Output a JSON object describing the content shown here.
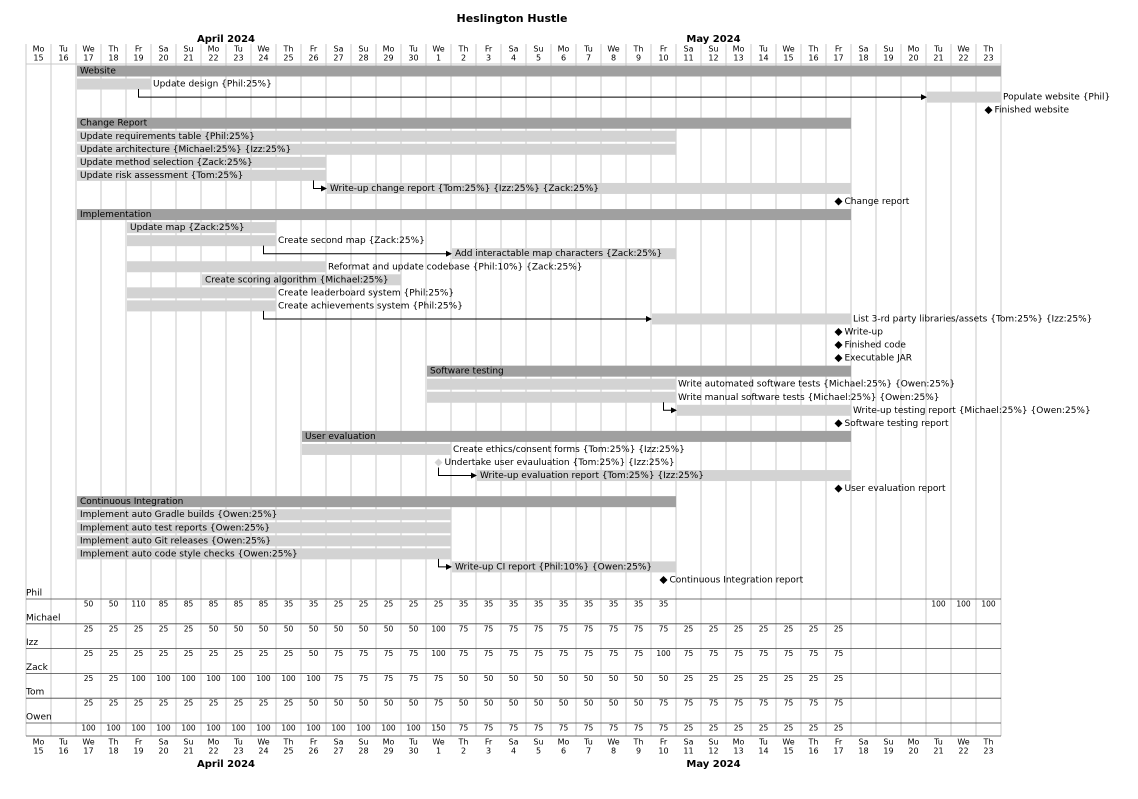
{
  "chart_data": {
    "type": "gantt",
    "title": "Heslington Hustle",
    "xlim": [
      "2024-04-15",
      "2024-05-23"
    ],
    "months": [
      "April 2024",
      "May 2024"
    ],
    "weekdays": [
      "Mo",
      "Tu",
      "We",
      "Th",
      "Fr",
      "Sa",
      "Su",
      "Mo",
      "Tu",
      "We",
      "Th",
      "Fr",
      "Sa",
      "Su",
      "Mo",
      "Tu",
      "We",
      "Th",
      "Fr",
      "Sa",
      "Su",
      "Mo",
      "Tu",
      "We",
      "Th",
      "Fr",
      "Sa",
      "Su",
      "Mo",
      "Tu",
      "We",
      "Th",
      "Fr",
      "Sa",
      "Su",
      "Mo",
      "Tu",
      "We",
      "Th"
    ],
    "days": [
      15,
      16,
      17,
      18,
      19,
      20,
      21,
      22,
      23,
      24,
      25,
      26,
      27,
      28,
      29,
      30,
      1,
      2,
      3,
      4,
      5,
      6,
      7,
      8,
      9,
      10,
      11,
      12,
      13,
      14,
      15,
      16,
      17,
      18,
      19,
      20,
      21,
      22,
      23
    ],
    "group_color": "#a0a0a0",
    "task_color": "#d3d3d3",
    "milestone_color": "#000000",
    "overload_color": "#cc0000",
    "tasks": [
      {
        "kind": "group",
        "name": "Website",
        "start": "2024-04-17",
        "end": "2024-05-23"
      },
      {
        "kind": "task",
        "name": "Update design {Phil:25%}",
        "start": "2024-04-17",
        "end": "2024-04-19"
      },
      {
        "kind": "task",
        "name": "Populate website {Phil}",
        "start": "2024-05-21",
        "end": "2024-05-23"
      },
      {
        "kind": "milestone",
        "name": "Finished website",
        "start": "2024-05-23"
      },
      {
        "kind": "group",
        "name": "Change Report",
        "start": "2024-04-17",
        "end": "2024-05-17"
      },
      {
        "kind": "task",
        "name": "Update requirements table {Phil:25%}",
        "start": "2024-04-17",
        "end": "2024-05-10"
      },
      {
        "kind": "task",
        "name": "Update architecture {Michael:25%} {Izz:25%}",
        "start": "2024-04-17",
        "end": "2024-05-10"
      },
      {
        "kind": "task",
        "name": "Update method selection {Zack:25%}",
        "start": "2024-04-17",
        "end": "2024-04-26"
      },
      {
        "kind": "task",
        "name": "Update risk assessment {Tom:25%}",
        "start": "2024-04-17",
        "end": "2024-04-26"
      },
      {
        "kind": "task",
        "name": "Write-up change report {Tom:25%} {Izz:25%} {Zack:25%}",
        "start": "2024-04-27",
        "end": "2024-05-17"
      },
      {
        "kind": "milestone",
        "name": "Change report",
        "start": "2024-05-17"
      },
      {
        "kind": "group",
        "name": "Implementation",
        "start": "2024-04-17",
        "end": "2024-05-17"
      },
      {
        "kind": "task",
        "name": "Update map {Zack:25%}",
        "start": "2024-04-19",
        "end": "2024-04-24"
      },
      {
        "kind": "task",
        "name": "Create second map {Zack:25%}",
        "start": "2024-04-19",
        "end": "2024-04-24"
      },
      {
        "kind": "task",
        "name": "Add interactable map characters {Zack:25%}",
        "start": "2024-05-02",
        "end": "2024-05-10"
      },
      {
        "kind": "task",
        "name": "Reformat and update codebase {Phil:10%} {Zack:25%}",
        "start": "2024-04-19",
        "end": "2024-04-26"
      },
      {
        "kind": "task",
        "name": "Create scoring algorithm {Michael:25%}",
        "start": "2024-04-22",
        "end": "2024-04-29"
      },
      {
        "kind": "task",
        "name": "Create leaderboard system {Phil:25%}",
        "start": "2024-04-19",
        "end": "2024-04-24"
      },
      {
        "kind": "task",
        "name": "Create achievements system {Phil:25%}",
        "start": "2024-04-19",
        "end": "2024-04-24"
      },
      {
        "kind": "task",
        "name": "List 3-rd party libraries/assets {Tom:25%} {Izz:25%}",
        "start": "2024-05-10",
        "end": "2024-05-17"
      },
      {
        "kind": "milestone",
        "name": "Write-up",
        "start": "2024-05-17"
      },
      {
        "kind": "milestone",
        "name": "Finished code",
        "start": "2024-05-17"
      },
      {
        "kind": "milestone",
        "name": "Executable JAR",
        "start": "2024-05-17"
      },
      {
        "kind": "group",
        "name": "Software testing",
        "start": "2024-05-01",
        "end": "2024-05-17"
      },
      {
        "kind": "task",
        "name": "Write automated software tests {Michael:25%} {Owen:25%}",
        "start": "2024-05-01",
        "end": "2024-05-10"
      },
      {
        "kind": "task",
        "name": "Write manual software tests {Michael:25%} {Owen:25%}",
        "start": "2024-05-01",
        "end": "2024-05-10"
      },
      {
        "kind": "task",
        "name": "Write-up testing report {Michael:25%} {Owen:25%}",
        "start": "2024-05-11",
        "end": "2024-05-17"
      },
      {
        "kind": "milestone",
        "name": "Software testing report",
        "start": "2024-05-17"
      },
      {
        "kind": "group",
        "name": "User evaluation",
        "start": "2024-04-26",
        "end": "2024-05-17"
      },
      {
        "kind": "task",
        "name": "Create ethics/consent forms {Tom:25%} {Izz:25%}",
        "start": "2024-04-26",
        "end": "2024-05-01"
      },
      {
        "kind": "task",
        "name": "Undertake user evauluation {Tom:25%} {Izz:25%}",
        "start": "2024-05-01",
        "end": null
      },
      {
        "kind": "task",
        "name": "Write-up evaluation report {Tom:25%} {Izz:25%}",
        "start": "2024-05-03",
        "end": "2024-05-17"
      },
      {
        "kind": "milestone",
        "name": "User evaluation report",
        "start": "2024-05-17"
      },
      {
        "kind": "group",
        "name": "Continuous Integration",
        "start": "2024-04-17",
        "end": "2024-05-10"
      },
      {
        "kind": "task",
        "name": "Implement auto Gradle builds {Owen:25%}",
        "start": "2024-04-17",
        "end": "2024-05-01"
      },
      {
        "kind": "task",
        "name": "Implement auto test reports {Owen:25%}",
        "start": "2024-04-17",
        "end": "2024-05-01"
      },
      {
        "kind": "task",
        "name": "Implement auto Git releases {Owen:25%}",
        "start": "2024-04-17",
        "end": "2024-05-01"
      },
      {
        "kind": "task",
        "name": "Implement auto code style checks {Owen:25%}",
        "start": "2024-04-17",
        "end": "2024-05-01"
      },
      {
        "kind": "task",
        "name": "Write-up CI report {Phil:10%} {Owen:25%}",
        "start": "2024-05-02",
        "end": "2024-05-10"
      },
      {
        "kind": "milestone",
        "name": "Continuous Integration report",
        "start": "2024-05-10"
      }
    ],
    "resources": [
      {
        "name": "Phil",
        "values": [
          null,
          null,
          50,
          50,
          110,
          85,
          85,
          85,
          85,
          85,
          35,
          35,
          25,
          25,
          25,
          25,
          25,
          35,
          35,
          35,
          35,
          35,
          35,
          35,
          35,
          35,
          null,
          null,
          null,
          null,
          null,
          null,
          null,
          null,
          null,
          null,
          100,
          100,
          100
        ]
      },
      {
        "name": "Michael",
        "values": [
          null,
          null,
          25,
          25,
          25,
          25,
          25,
          50,
          50,
          50,
          50,
          50,
          50,
          50,
          50,
          50,
          100,
          75,
          75,
          75,
          75,
          75,
          75,
          75,
          75,
          75,
          25,
          25,
          25,
          25,
          25,
          25,
          25,
          null,
          null,
          null,
          null,
          null,
          null
        ]
      },
      {
        "name": "Izz",
        "values": [
          null,
          null,
          25,
          25,
          25,
          25,
          25,
          25,
          25,
          25,
          25,
          50,
          75,
          75,
          75,
          75,
          100,
          75,
          75,
          75,
          75,
          75,
          75,
          75,
          75,
          100,
          75,
          75,
          75,
          75,
          75,
          75,
          75,
          null,
          null,
          null,
          null,
          null,
          null
        ]
      },
      {
        "name": "Zack",
        "values": [
          null,
          null,
          25,
          25,
          100,
          100,
          100,
          100,
          100,
          100,
          100,
          100,
          75,
          75,
          75,
          75,
          75,
          50,
          50,
          50,
          50,
          50,
          50,
          50,
          50,
          50,
          25,
          25,
          25,
          25,
          25,
          25,
          25,
          null,
          null,
          null,
          null,
          null,
          null
        ]
      },
      {
        "name": "Tom",
        "values": [
          null,
          null,
          25,
          25,
          25,
          25,
          25,
          25,
          25,
          25,
          25,
          50,
          50,
          50,
          50,
          50,
          75,
          50,
          50,
          50,
          50,
          50,
          50,
          50,
          50,
          75,
          75,
          75,
          75,
          75,
          75,
          75,
          75,
          null,
          null,
          null,
          null,
          null,
          null
        ]
      },
      {
        "name": "Owen",
        "values": [
          null,
          null,
          100,
          100,
          100,
          100,
          100,
          100,
          100,
          100,
          100,
          100,
          100,
          100,
          100,
          100,
          150,
          75,
          75,
          75,
          75,
          75,
          75,
          75,
          75,
          75,
          25,
          25,
          25,
          25,
          25,
          25,
          25,
          null,
          null,
          null,
          null,
          null,
          null
        ]
      }
    ]
  }
}
